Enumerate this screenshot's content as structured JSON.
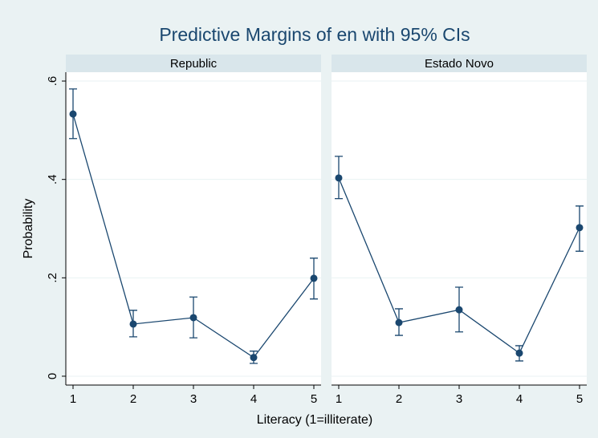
{
  "chart_data": {
    "type": "line",
    "title": "Predictive Margins of en with 95% CIs",
    "x_label": "Literacy (1=illiterate)",
    "y_label": "Probability",
    "x": [
      1,
      2,
      3,
      4,
      5
    ],
    "xlim": [
      0.88,
      5.12
    ],
    "xticks": [
      1,
      2,
      3,
      4,
      5
    ],
    "ylim": [
      -0.018,
      0.618
    ],
    "yticks": [
      0,
      {
        "value": 0.2,
        "label": ".2"
      },
      {
        "value": 0.4,
        "label": ".4"
      },
      {
        "value": 0.6,
        "label": ".6"
      }
    ],
    "grid": true,
    "color": "#1a476f",
    "panels": [
      {
        "name": "Republic",
        "values": [
          0.533,
          0.106,
          0.119,
          0.038,
          0.199
        ],
        "lower": [
          0.483,
          0.08,
          0.078,
          0.026,
          0.157
        ],
        "upper": [
          0.584,
          0.134,
          0.161,
          0.051,
          0.24
        ]
      },
      {
        "name": "Estado Novo",
        "values": [
          0.403,
          0.109,
          0.135,
          0.047,
          0.302
        ],
        "lower": [
          0.361,
          0.083,
          0.09,
          0.031,
          0.254
        ],
        "upper": [
          0.447,
          0.137,
          0.181,
          0.062,
          0.346
        ]
      }
    ]
  }
}
